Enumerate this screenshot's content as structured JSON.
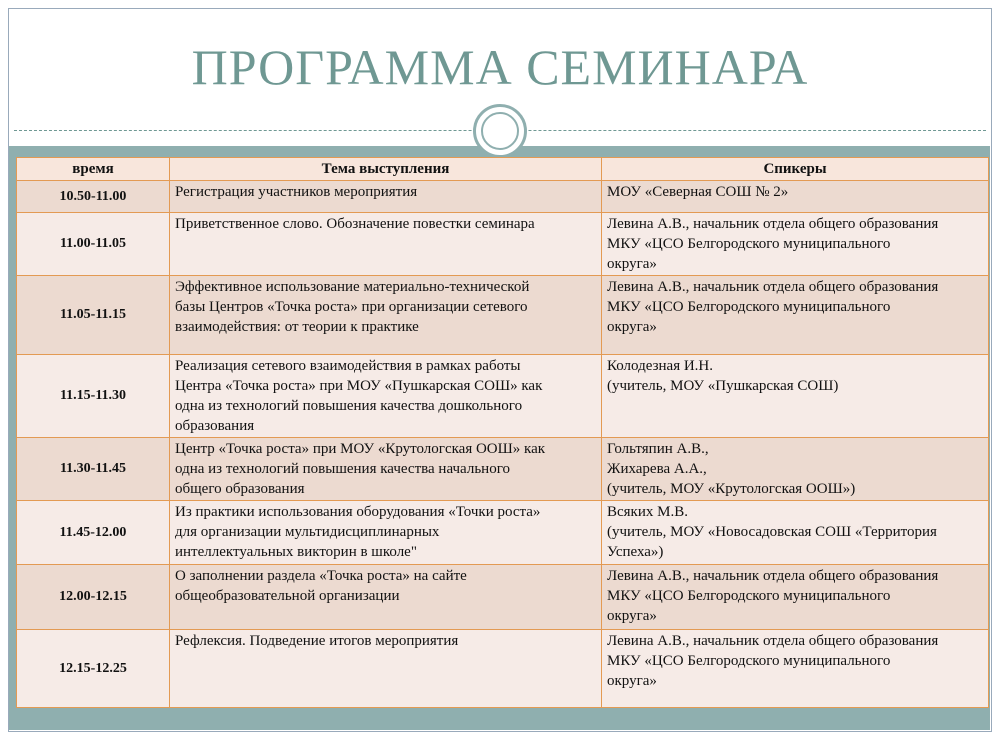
{
  "header": {
    "title": "ПРОГРАММА СЕМИНАРА"
  },
  "table": {
    "columns": [
      "время",
      "Тема выступления",
      "Спикеры"
    ],
    "rows": [
      [
        [
          "10.50-11.00"
        ],
        [
          "Регистрация участников мероприятия"
        ],
        [
          "МОУ «Северная СОШ № 2»"
        ]
      ],
      [
        [
          "11.00-11.05"
        ],
        [
          "Приветственное слово. Обозначение повестки семинара"
        ],
        [
          "Левина А.В., начальник отдела общего образования",
          "МКУ «ЦСО Белгородского муниципального",
          "округа»"
        ]
      ],
      [
        [
          "11.05-11.15"
        ],
        [
          "Эффективное использование материально-технической",
          "базы Центров «Точка роста» при организации сетевого",
          "взаимодействия: от теории к практике"
        ],
        [
          "Левина А.В., начальник отдела общего образования",
          "МКУ «ЦСО Белгородского муниципального",
          "округа»"
        ]
      ],
      [
        [
          "11.15-11.30"
        ],
        [
          "Реализация сетевого взаимодействия в рамках работы",
          "Центра «Точка роста» при МОУ «Пушкарская СОШ» как",
          "одна из технологий повышения качества дошкольного",
          "образования"
        ],
        [
          "Колодезная И.Н.",
          "(учитель, МОУ «Пушкарская СОШ)"
        ]
      ],
      [
        [
          "11.30-11.45"
        ],
        [
          "Центр «Точка роста» при МОУ «Крутологская ООШ» как",
          "одна из технологий повышения качества начального",
          "общего образования"
        ],
        [
          "Гольтяпин А.В.,",
          "Жихарева А.А.,",
          "(учитель, МОУ «Крутологская ООШ»)"
        ]
      ],
      [
        [
          "11.45-12.00"
        ],
        [
          "Из практики использования оборудования «Точки роста»",
          "для организации мультидисциплинарных",
          "интеллектуальных викторин в школе\""
        ],
        [
          "Всяких М.В.",
          "(учитель, МОУ «Новосадовская СОШ «Территория",
          "Успеха»)"
        ]
      ],
      [
        [
          "12.00-12.15"
        ],
        [
          "О заполнении раздела «Точка роста» на сайте",
          "общеобразовательной организации"
        ],
        [
          "Левина А.В., начальник отдела общего образования",
          "МКУ «ЦСО Белгородского муниципального",
          "округа»"
        ]
      ],
      [
        [
          "12.15-12.25"
        ],
        [
          "Рефлексия. Подведение итогов мероприятия"
        ],
        [
          "Левина А.В., начальник отдела общего образования",
          "МКУ «ЦСО Белгородского муниципального",
          "округа»"
        ]
      ]
    ]
  }
}
